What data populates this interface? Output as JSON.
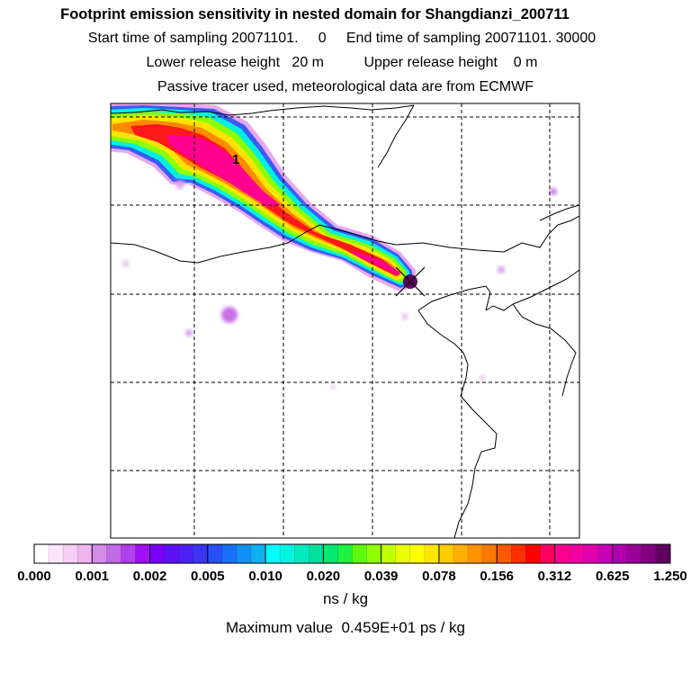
{
  "chart_data": {
    "type": "heatmap",
    "title": "Footprint emission sensitivity in nested domain for Shangdianzi_200711",
    "subtitles": {
      "start_label": "Start time of sampling",
      "start_value": "20071101.     0",
      "end_label": "End time of sampling",
      "end_value": "20071101. 30000",
      "lower_label": "Lower release height",
      "lower_value": "20 m",
      "upper_label": "Upper release height",
      "upper_value": "0 m",
      "tracer_note": "Passive tracer used, meteorological data are from ECMWF"
    },
    "map_label": "1",
    "station_marker": "Shangdianzi",
    "colorbar": {
      "unit": "ns / kg",
      "tick_labels": [
        "0.000",
        "0.001",
        "0.002",
        "0.005",
        "0.010",
        "0.020",
        "0.039",
        "0.078",
        "0.156",
        "0.312",
        "0.625",
        "1.250"
      ],
      "colors": [
        "#ffffff",
        "#fbe6fb",
        "#f5cff5",
        "#efb5ef",
        "#d48ce8",
        "#c26ae6",
        "#b040ec",
        "#a010f5",
        "#7a00ff",
        "#6010f8",
        "#4a20f5",
        "#3a35f0",
        "#2850f5",
        "#1a70f7",
        "#1090f5",
        "#10b0f0",
        "#00ffff",
        "#00f5e0",
        "#00eac0",
        "#00df9c",
        "#00e870",
        "#20f040",
        "#60f810",
        "#90ff00",
        "#c0ff00",
        "#e8ff00",
        "#ffff00",
        "#ffe600",
        "#ffcc00",
        "#ffb000",
        "#ff9400",
        "#ff7800",
        "#ff5a00",
        "#ff3000",
        "#ff0000",
        "#ff0060",
        "#ff0090",
        "#f000a0",
        "#e000b0",
        "#c800b8",
        "#b000b0",
        "#980098",
        "#800080",
        "#600060"
      ]
    },
    "max_value_text": "Maximum value  0.459E+01 ps / kg"
  }
}
